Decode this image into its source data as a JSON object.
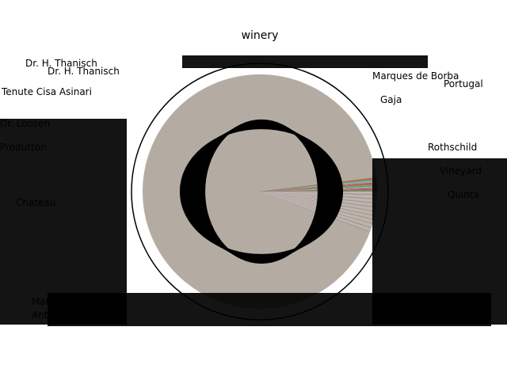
{
  "chart_data": {
    "type": "pie",
    "title": "winery",
    "legend": "none",
    "slice_count_estimate": 420,
    "dominant_slice_color": "#b4aca2",
    "slice_colors": [
      "#1f77b4",
      "#ff7f0e",
      "#2ca02c",
      "#d62728",
      "#9467bd",
      "#8c564b",
      "#e377c2",
      "#7f7f7f",
      "#bcbd22",
      "#17becf"
    ],
    "overlay_rings": "dense black overlapping label leader text obscures center-left of pie",
    "visible_labels": [
      "Dr. H. Thanisch",
      "Dr. H. Thanisch",
      "Tenute Cisa Asinari",
      "Marques de Borba",
      "Portugal",
      "Rothschild",
      "Dr. Loosen",
      "Produttori",
      "Vineyard",
      "Quinta",
      "Gaja",
      "Chateau",
      "Mateus",
      "Antinori"
    ]
  }
}
